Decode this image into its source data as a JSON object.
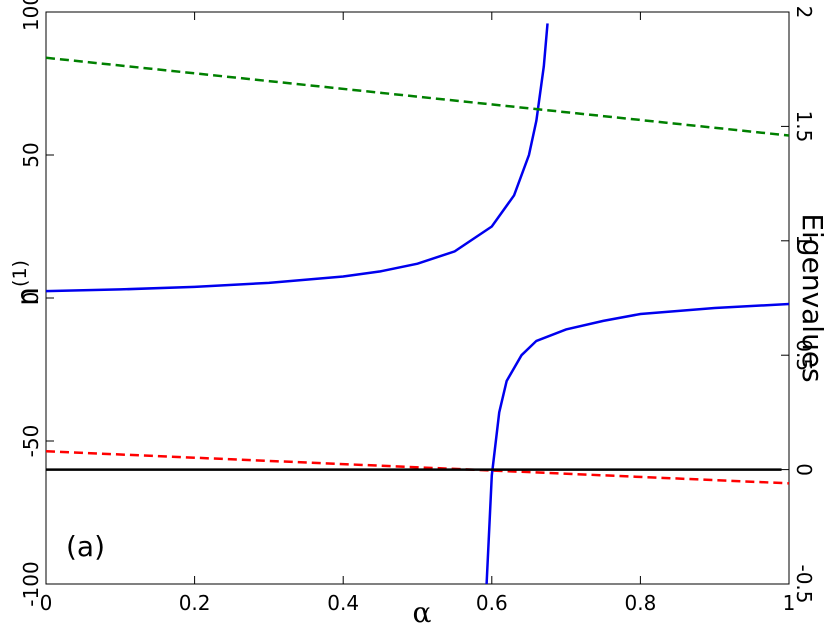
{
  "chart_data": {
    "type": "line",
    "xlabel": "α",
    "ylabel": {
      "base": "n",
      "sup": "(1)"
    },
    "y2label": "Eigenvalues",
    "annotation": "(a)",
    "xlim": [
      0,
      1
    ],
    "xticks": [
      0,
      0.2,
      0.4,
      0.6,
      0.8,
      1
    ],
    "ylim": [
      -100,
      100
    ],
    "yticks": [
      -100,
      -50,
      0,
      50,
      100
    ],
    "y2lim": [
      -0.5,
      2
    ],
    "y2ticks": [
      -0.5,
      0,
      0.5,
      1,
      1.5,
      2
    ],
    "grid": false,
    "series": [
      {
        "color": "#0000ee",
        "dashed": false,
        "axis": "y",
        "x": [
          0,
          0.1,
          0.2,
          0.3,
          0.4,
          0.45,
          0.5,
          0.55,
          0.6,
          0.63,
          0.65,
          0.66,
          0.67,
          0.675
        ],
        "values": [
          2.4,
          3.0,
          3.9,
          5.3,
          7.5,
          9.3,
          12.0,
          16.3,
          25.0,
          35.9,
          50.0,
          62.0,
          81.0,
          96.0
        ]
      },
      {
        "color": "#0000ee",
        "dashed": false,
        "axis": "y",
        "x": [
          0.593,
          0.6,
          0.61,
          0.62,
          0.64,
          0.66,
          0.7,
          0.75,
          0.8,
          0.9,
          1
        ],
        "values": [
          -100,
          -62,
          -40,
          -29,
          -20,
          -15,
          -11,
          -8,
          -5.6,
          -3.5,
          -2.1
        ]
      },
      {
        "color": "#008000",
        "dashed": true,
        "axis": "y2",
        "x": [
          0,
          1
        ],
        "values": [
          1.8,
          1.46
        ]
      },
      {
        "color": "#ff0000",
        "dashed": true,
        "axis": "y2",
        "x": [
          0,
          1
        ],
        "values": [
          0.08,
          -0.06
        ]
      },
      {
        "color": "#000000",
        "dashed": false,
        "axis": "y2",
        "x": [
          0,
          0.99
        ],
        "values": [
          0,
          0
        ]
      }
    ]
  }
}
